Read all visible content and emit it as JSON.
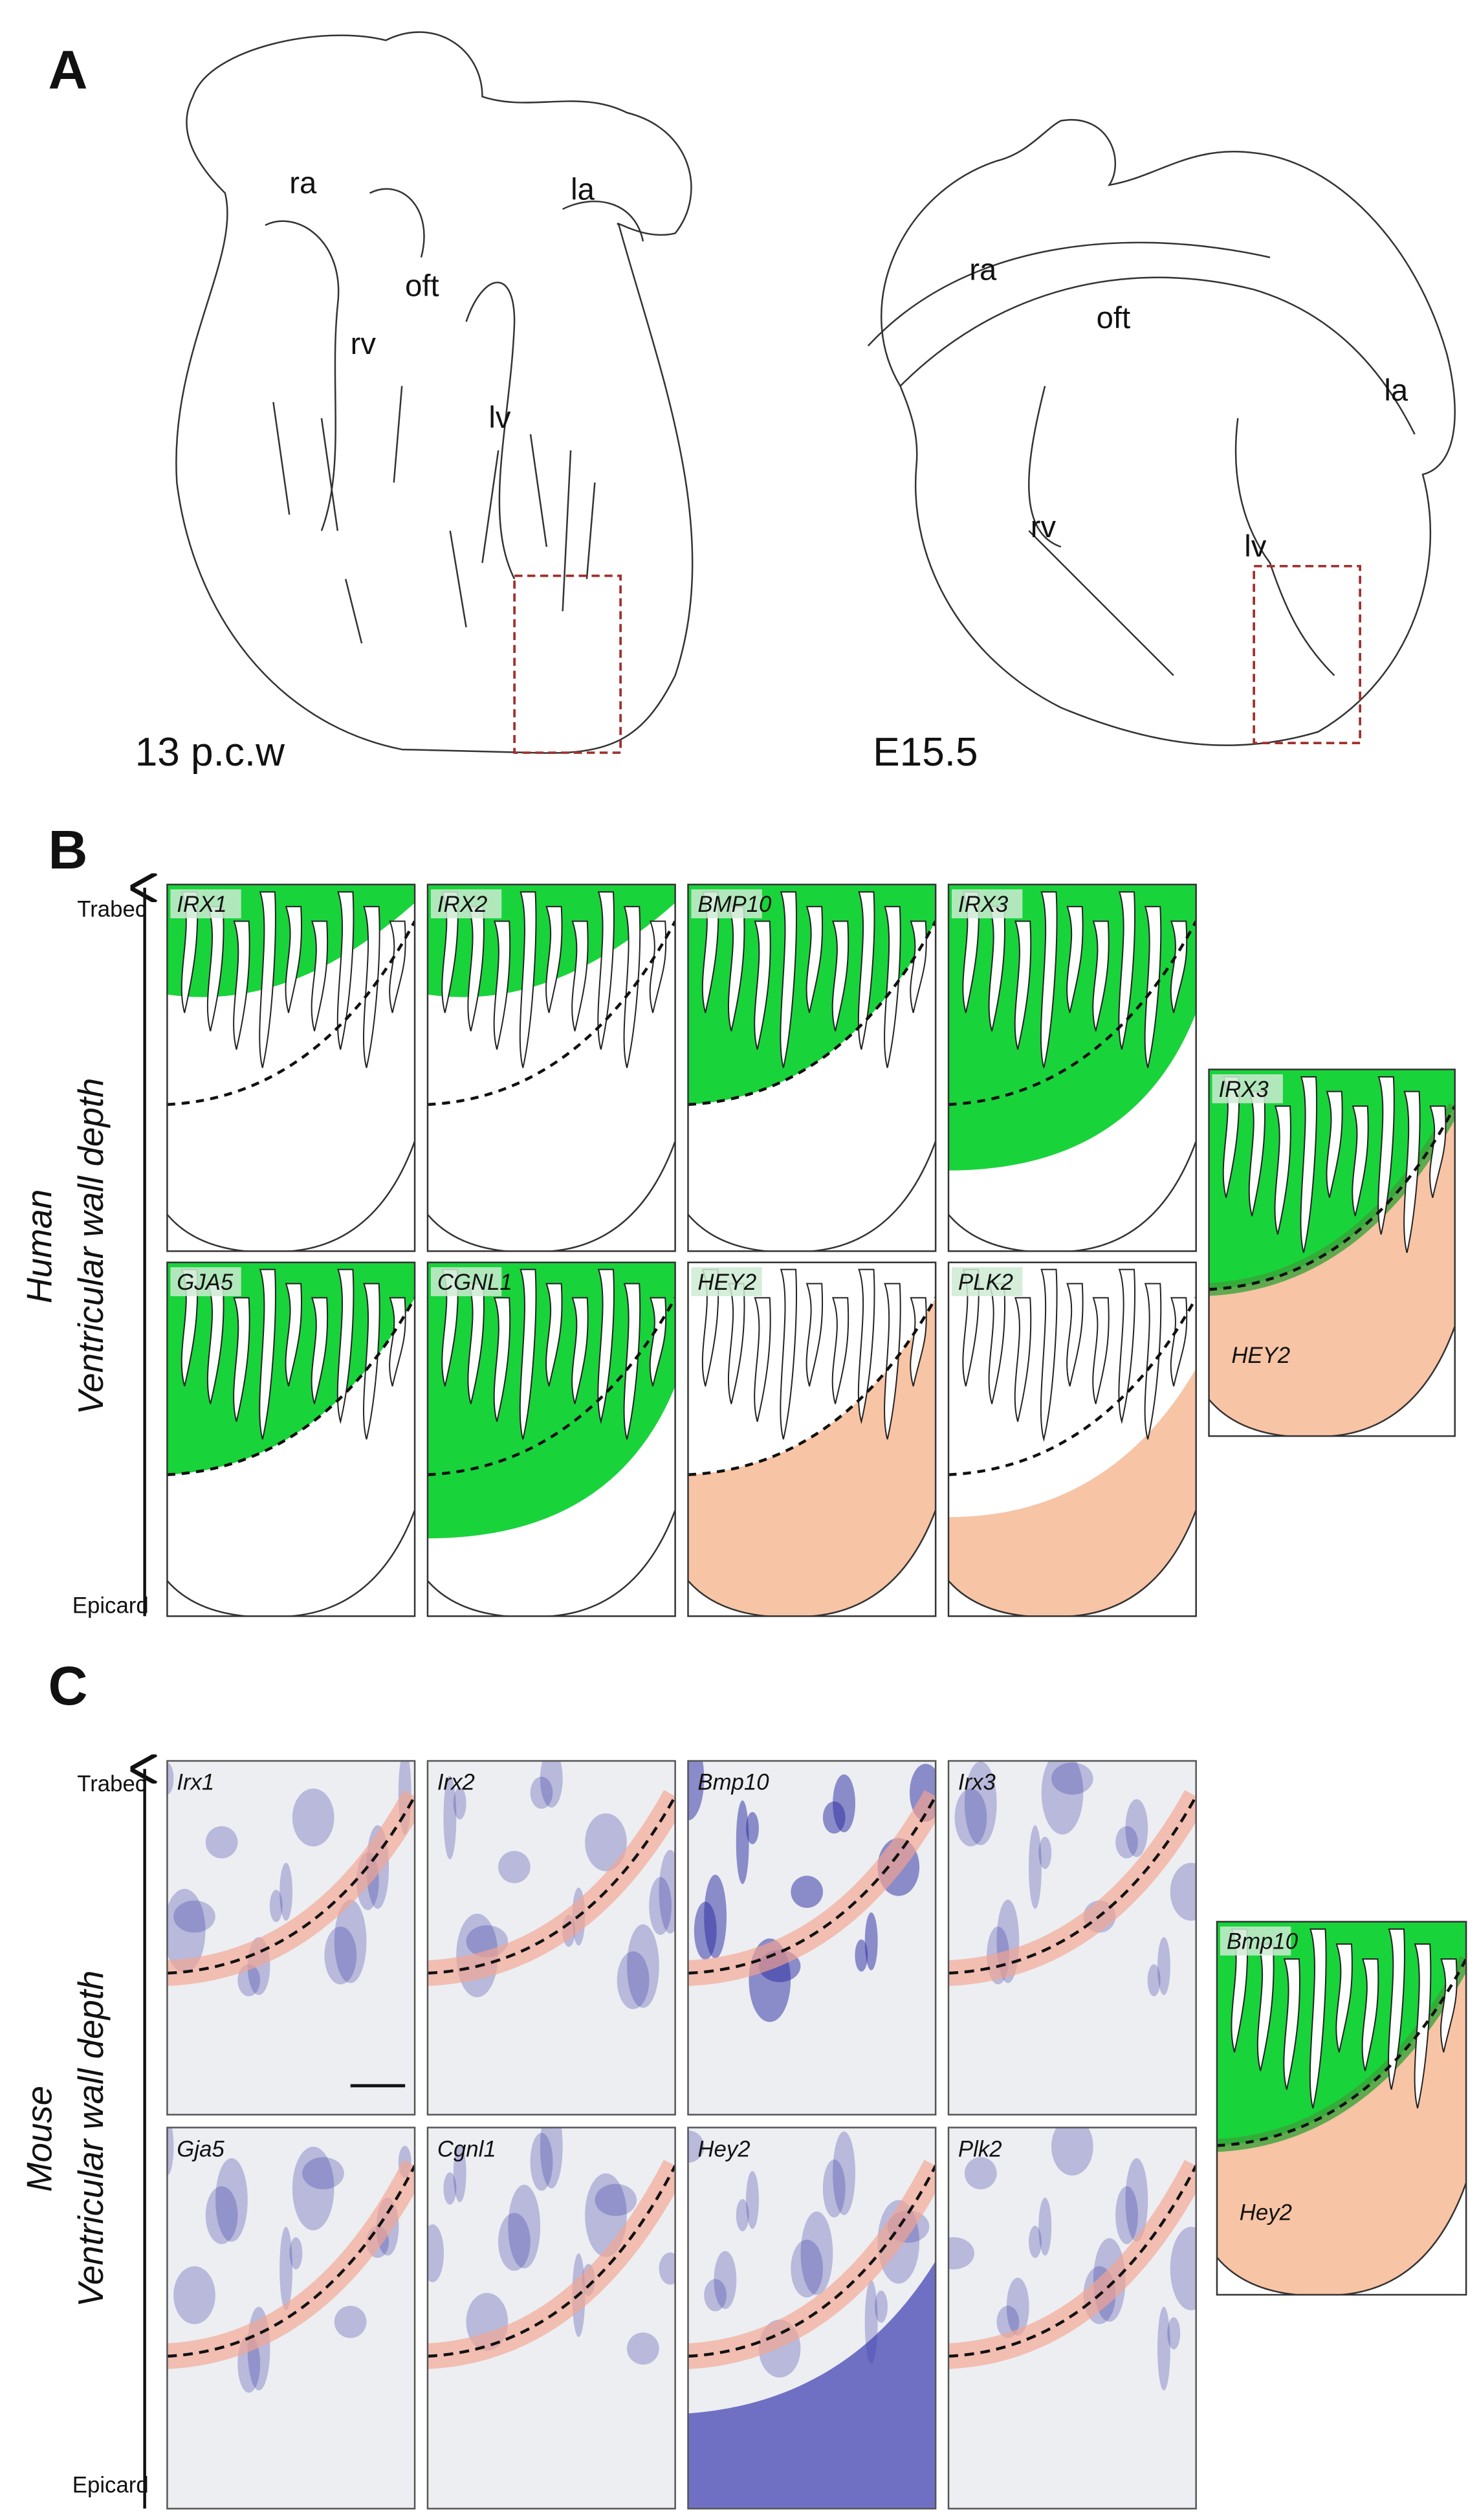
{
  "panel_a": {
    "label": "A",
    "human": {
      "chambers": [
        "ra",
        "la",
        "oft",
        "rv",
        "lv"
      ],
      "stage": "13 p.c.w"
    },
    "mouse": {
      "chambers": [
        "ra",
        "oft",
        "la",
        "rv",
        "lv"
      ],
      "stage": "E15.5"
    }
  },
  "panel_b": {
    "label": "B",
    "axis_top": "Trabec",
    "axis_bottom": "Epicard",
    "species": "Human",
    "axis_title": "Ventricular wall depth",
    "genes": [
      "IRX1",
      "IRX2",
      "BMP10",
      "IRX3",
      "GJA5",
      "CGNL1",
      "HEY2",
      "PLK2"
    ],
    "overlay": [
      "IRX3",
      "HEY2"
    ]
  },
  "panel_c": {
    "label": "C",
    "axis_top": "Trabec",
    "axis_bottom": "Epicard",
    "species": "Mouse",
    "axis_title": "Ventricular wall depth",
    "genes": [
      "Irx1",
      "Irx2",
      "Bmp10",
      "Irx3",
      "Gja5",
      "Cgnl1",
      "Hey2",
      "Plk2"
    ],
    "overlay": [
      "Bmp10",
      "Hey2"
    ]
  }
}
